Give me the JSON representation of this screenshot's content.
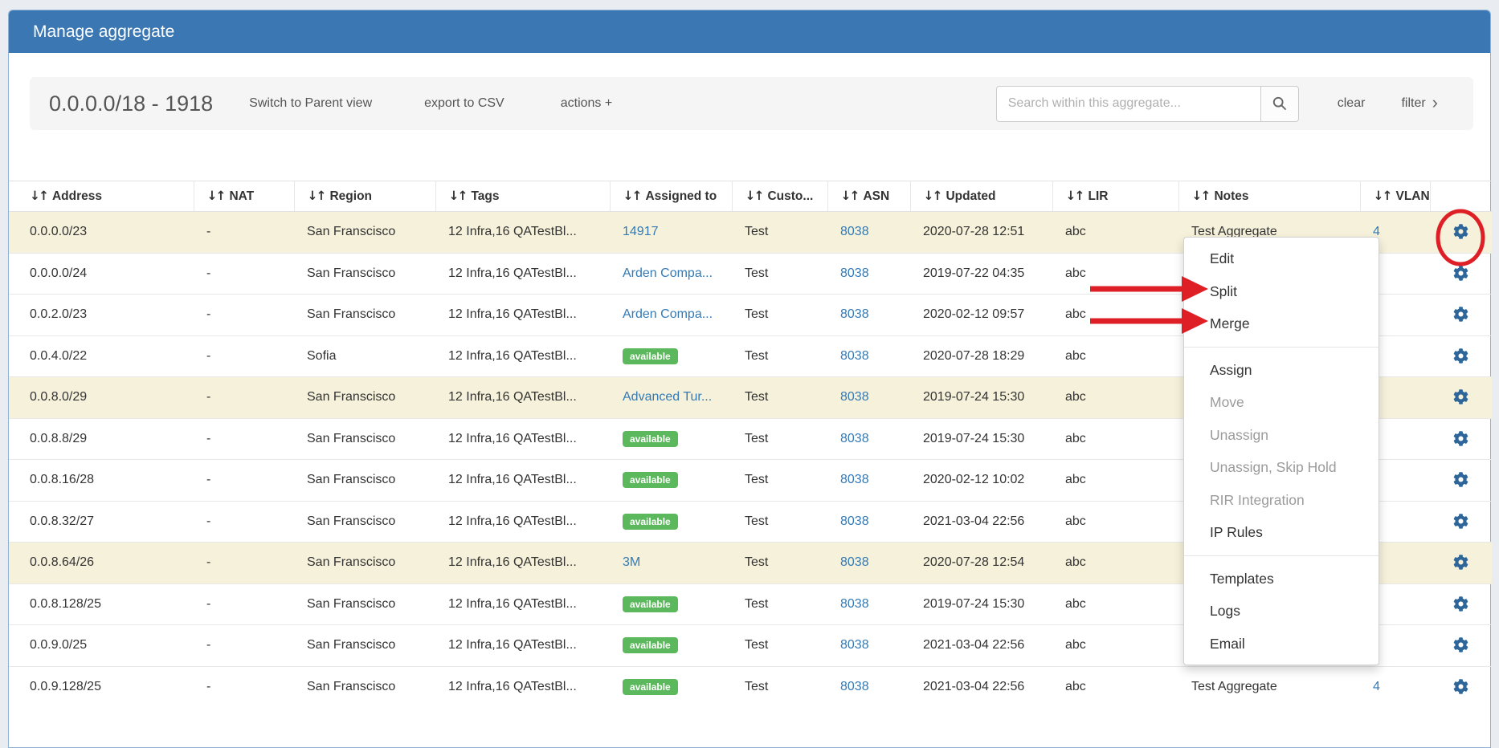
{
  "panel": {
    "title": "Manage aggregate"
  },
  "toolbar": {
    "aggregate_label": "0.0.0.0/18 - 1918",
    "switch_view_label": "Switch to Parent view",
    "export_label": "export to CSV",
    "actions_label": "actions +",
    "search_placeholder": "Search within this aggregate...",
    "search_value": "",
    "clear_label": "clear",
    "filter_label": "filter",
    "filter_chevron": "›"
  },
  "table": {
    "sort_icon": "↓↑",
    "columns": [
      {
        "key": "address",
        "label": "Address"
      },
      {
        "key": "nat",
        "label": "NAT"
      },
      {
        "key": "region",
        "label": "Region"
      },
      {
        "key": "tags",
        "label": "Tags"
      },
      {
        "key": "assigned_to",
        "label": "Assigned to"
      },
      {
        "key": "customer",
        "label": "Custo..."
      },
      {
        "key": "asn",
        "label": "ASN"
      },
      {
        "key": "updated",
        "label": "Updated"
      },
      {
        "key": "lir",
        "label": "LIR"
      },
      {
        "key": "notes",
        "label": "Notes"
      },
      {
        "key": "vlan",
        "label": "VLAN"
      },
      {
        "key": "actions",
        "label": ""
      }
    ],
    "rows": [
      {
        "address": "0.0.0.0/23",
        "nat": "-",
        "region": "San Franscisco",
        "tags": "12 Infra,16 QATestBl...",
        "assigned": {
          "text": "14917",
          "kind": "link"
        },
        "customer": "Test",
        "asn": "8038",
        "updated": "2020-07-28 12:51",
        "lir": "abc",
        "notes": "Test Aggregate",
        "vlan": "4",
        "highlighted": true
      },
      {
        "address": "0.0.0.0/24",
        "nat": "-",
        "region": "San Franscisco",
        "tags": "12 Infra,16 QATestBl...",
        "assigned": {
          "text": "Arden Compa...",
          "kind": "link"
        },
        "customer": "Test",
        "asn": "8038",
        "updated": "2019-07-22 04:35",
        "lir": "abc",
        "notes": "",
        "vlan": "",
        "highlighted": false
      },
      {
        "address": "0.0.2.0/23",
        "nat": "-",
        "region": "San Franscisco",
        "tags": "12 Infra,16 QATestBl...",
        "assigned": {
          "text": "Arden Compa...",
          "kind": "link"
        },
        "customer": "Test",
        "asn": "8038",
        "updated": "2020-02-12 09:57",
        "lir": "abc",
        "notes": "",
        "vlan": "",
        "highlighted": false
      },
      {
        "address": "0.0.4.0/22",
        "nat": "-",
        "region": "Sofia",
        "tags": "12 Infra,16 QATestBl...",
        "assigned": {
          "text": "available",
          "kind": "badge"
        },
        "customer": "Test",
        "asn": "8038",
        "updated": "2020-07-28 18:29",
        "lir": "abc",
        "notes": "",
        "vlan": "",
        "highlighted": false
      },
      {
        "address": "0.0.8.0/29",
        "nat": "-",
        "region": "San Franscisco",
        "tags": "12 Infra,16 QATestBl...",
        "assigned": {
          "text": "Advanced Tur...",
          "kind": "link"
        },
        "customer": "Test",
        "asn": "8038",
        "updated": "2019-07-24 15:30",
        "lir": "abc",
        "notes": "",
        "vlan": "",
        "highlighted": true
      },
      {
        "address": "0.0.8.8/29",
        "nat": "-",
        "region": "San Franscisco",
        "tags": "12 Infra,16 QATestBl...",
        "assigned": {
          "text": "available",
          "kind": "badge"
        },
        "customer": "Test",
        "asn": "8038",
        "updated": "2019-07-24 15:30",
        "lir": "abc",
        "notes": "",
        "vlan": "",
        "highlighted": false
      },
      {
        "address": "0.0.8.16/28",
        "nat": "-",
        "region": "San Franscisco",
        "tags": "12 Infra,16 QATestBl...",
        "assigned": {
          "text": "available",
          "kind": "badge"
        },
        "customer": "Test",
        "asn": "8038",
        "updated": "2020-02-12 10:02",
        "lir": "abc",
        "notes": "",
        "vlan": "",
        "highlighted": false
      },
      {
        "address": "0.0.8.32/27",
        "nat": "-",
        "region": "San Franscisco",
        "tags": "12 Infra,16 QATestBl...",
        "assigned": {
          "text": "available",
          "kind": "badge"
        },
        "customer": "Test",
        "asn": "8038",
        "updated": "2021-03-04 22:56",
        "lir": "abc",
        "notes": "",
        "vlan": "",
        "highlighted": false
      },
      {
        "address": "0.0.8.64/26",
        "nat": "-",
        "region": "San Franscisco",
        "tags": "12 Infra,16 QATestBl...",
        "assigned": {
          "text": "3M",
          "kind": "link"
        },
        "customer": "Test",
        "asn": "8038",
        "updated": "2020-07-28 12:54",
        "lir": "abc",
        "notes": "",
        "vlan": "",
        "highlighted": true
      },
      {
        "address": "0.0.8.128/25",
        "nat": "-",
        "region": "San Franscisco",
        "tags": "12 Infra,16 QATestBl...",
        "assigned": {
          "text": "available",
          "kind": "badge"
        },
        "customer": "Test",
        "asn": "8038",
        "updated": "2019-07-24 15:30",
        "lir": "abc",
        "notes": "",
        "vlan": "",
        "highlighted": false
      },
      {
        "address": "0.0.9.0/25",
        "nat": "-",
        "region": "San Franscisco",
        "tags": "12 Infra,16 QATestBl...",
        "assigned": {
          "text": "available",
          "kind": "badge"
        },
        "customer": "Test",
        "asn": "8038",
        "updated": "2021-03-04 22:56",
        "lir": "abc",
        "notes": "",
        "vlan": "",
        "highlighted": false
      },
      {
        "address": "0.0.9.128/25",
        "nat": "-",
        "region": "San Franscisco",
        "tags": "12 Infra,16 QATestBl...",
        "assigned": {
          "text": "available",
          "kind": "badge"
        },
        "customer": "Test",
        "asn": "8038",
        "updated": "2021-03-04 22:56",
        "lir": "abc",
        "notes": "Test Aggregate",
        "vlan": "4",
        "highlighted": false
      }
    ]
  },
  "menu": {
    "items": [
      {
        "label": "Edit",
        "enabled": true
      },
      {
        "label": "Split",
        "enabled": true
      },
      {
        "label": "Merge",
        "enabled": true
      },
      {
        "divider": true
      },
      {
        "label": "Assign",
        "enabled": true
      },
      {
        "label": "Move",
        "enabled": false
      },
      {
        "label": "Unassign",
        "enabled": false
      },
      {
        "label": "Unassign, Skip Hold",
        "enabled": false
      },
      {
        "label": "RIR Integration",
        "enabled": false
      },
      {
        "label": "IP Rules",
        "enabled": true
      },
      {
        "divider": true
      },
      {
        "label": "Templates",
        "enabled": true
      },
      {
        "label": "Logs",
        "enabled": true
      },
      {
        "label": "Email",
        "enabled": true
      }
    ]
  },
  "annotations": {
    "circled_gear_row": "0.0.0.0/23",
    "arrow_targets": [
      "Split",
      "Merge"
    ]
  },
  "colors": {
    "header_blue": "#3a77b3",
    "link_blue": "#337ab7",
    "badge_green": "#5cb85c",
    "gear_blue": "#2f6699",
    "annotation_red": "#df1f26",
    "row_highlight": "#f6f1da"
  }
}
